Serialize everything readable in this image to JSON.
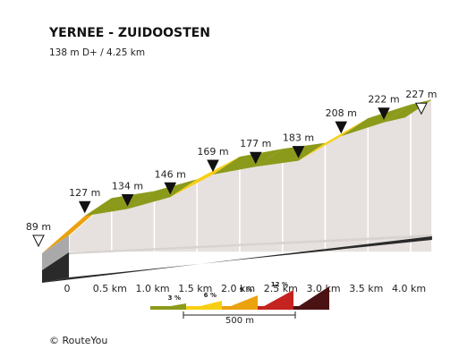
{
  "chart_data": {
    "type": "area",
    "title": "YERNEE - ZUIDOOSTEN",
    "subtitle": "138 m D+ / 4.25 km",
    "x_ticks": [
      "0",
      "0.5 km",
      "1.0 km",
      "1.5 km",
      "2.0 km",
      "2.5 km",
      "3.0 km",
      "3.5 km",
      "4.0 km"
    ],
    "segments": [
      {
        "x_start": 0.0,
        "x_end": 0.5,
        "y_start": 89,
        "y_end": 127,
        "gradient_band": 2
      },
      {
        "x_start": 0.5,
        "x_end": 1.0,
        "y_start": 127,
        "y_end": 134,
        "gradient_band": 0
      },
      {
        "x_start": 1.0,
        "x_end": 1.5,
        "y_start": 134,
        "y_end": 146,
        "gradient_band": 0
      },
      {
        "x_start": 1.5,
        "x_end": 2.0,
        "y_start": 146,
        "y_end": 169,
        "gradient_band": 1
      },
      {
        "x_start": 2.0,
        "x_end": 2.5,
        "y_start": 169,
        "y_end": 177,
        "gradient_band": 0
      },
      {
        "x_start": 2.5,
        "x_end": 3.0,
        "y_start": 177,
        "y_end": 183,
        "gradient_band": 0
      },
      {
        "x_start": 3.0,
        "x_end": 3.5,
        "y_start": 183,
        "y_end": 208,
        "gradient_band": 1
      },
      {
        "x_start": 3.5,
        "x_end": 4.0,
        "y_start": 208,
        "y_end": 222,
        "gradient_band": 0
      },
      {
        "x_start": 4.0,
        "x_end": 4.25,
        "y_start": 222,
        "y_end": 227,
        "gradient_band": 0
      }
    ],
    "elevation_labels": [
      {
        "x": 0.0,
        "label": "89 m",
        "marker": "open"
      },
      {
        "x": 0.5,
        "label": "127 m",
        "marker": "filled"
      },
      {
        "x": 1.0,
        "label": "134 m",
        "marker": "filled"
      },
      {
        "x": 1.5,
        "label": "146 m",
        "marker": "filled"
      },
      {
        "x": 2.0,
        "label": "169 m",
        "marker": "filled"
      },
      {
        "x": 2.5,
        "label": "177 m",
        "marker": "filled"
      },
      {
        "x": 3.0,
        "label": "183 m",
        "marker": "filled"
      },
      {
        "x": 3.5,
        "label": "208 m",
        "marker": "filled"
      },
      {
        "x": 4.0,
        "label": "222 m",
        "marker": "filled"
      },
      {
        "x": 4.25,
        "label": "227 m",
        "marker": "open"
      }
    ],
    "gradient_legend": [
      {
        "label": "3 %",
        "color": "#8c9a1b"
      },
      {
        "label": "6 %",
        "color": "#f7cf12"
      },
      {
        "label": "9 %",
        "color": "#eba20f"
      },
      {
        "label": "12 %",
        "color": "#c42320"
      },
      {
        "label": "",
        "color": "#4a1212"
      }
    ],
    "scale_label": "500 m",
    "credit": "© RouteYou"
  }
}
